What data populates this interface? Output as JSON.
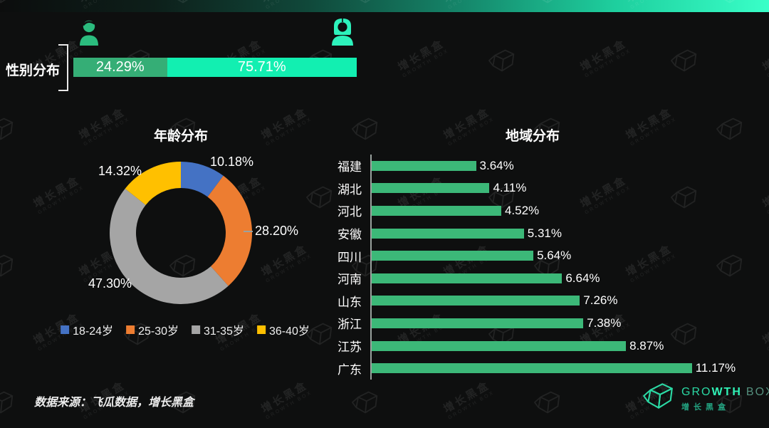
{
  "page": {
    "background": "#0e0f0f",
    "top_band_gradient": [
      "#0c0d0d",
      "#39ffc8"
    ]
  },
  "chart_data": [
    {
      "type": "bar",
      "subtype": "stacked-horizontal",
      "title": "性别分布",
      "icons": [
        "male-person-icon",
        "female-person-icon"
      ],
      "values": [
        24.29,
        75.71
      ],
      "labels": [
        "24.29%",
        "75.71%"
      ],
      "colors": [
        "#35ae76",
        "#12efb1"
      ]
    },
    {
      "type": "pie",
      "subtype": "donut",
      "title": "年龄分布",
      "categories": [
        "18-24岁",
        "25-30岁",
        "31-35岁",
        "36-40岁"
      ],
      "values": [
        10.18,
        28.2,
        47.3,
        14.32
      ],
      "labels": [
        "10.18%",
        "28.20%",
        "47.30%",
        "14.32%"
      ],
      "colors": [
        "#4472c4",
        "#ed7d31",
        "#a5a5a5",
        "#ffc000"
      ],
      "start_angle_deg": 0,
      "direction": "clockwise",
      "legend_position": "bottom"
    },
    {
      "type": "bar",
      "subtype": "horizontal",
      "title": "地域分布",
      "categories": [
        "福建",
        "湖北",
        "河北",
        "安徽",
        "四川",
        "河南",
        "山东",
        "浙江",
        "江苏",
        "广东"
      ],
      "values": [
        3.64,
        4.11,
        4.52,
        5.31,
        5.64,
        6.64,
        7.26,
        7.38,
        8.87,
        11.17
      ],
      "labels": [
        "3.64%",
        "4.11%",
        "4.52%",
        "5.31%",
        "5.64%",
        "6.64%",
        "7.26%",
        "7.38%",
        "8.87%",
        "11.17%"
      ],
      "bar_color": "#3cb878",
      "axis_color": "#9aa29e",
      "xlim": [
        0,
        11.5
      ],
      "grid": false
    }
  ],
  "icons": {
    "male": "male-person-icon",
    "female": "female-person-icon",
    "male_color": "#2bbc7e",
    "female_color": "#2df2bc",
    "brand_box": "growth-box-cube-icon"
  },
  "footer": {
    "source": "数据来源：飞瓜数据，增长黑盒"
  },
  "logo": {
    "gro": "GRO",
    "wth": "WTH",
    "box": "BOX",
    "subtitle": "增长黑盒",
    "color": "#2bd9a4"
  },
  "watermark": {
    "text": "增长黑盒",
    "subtext": "GROWTH BOX"
  }
}
